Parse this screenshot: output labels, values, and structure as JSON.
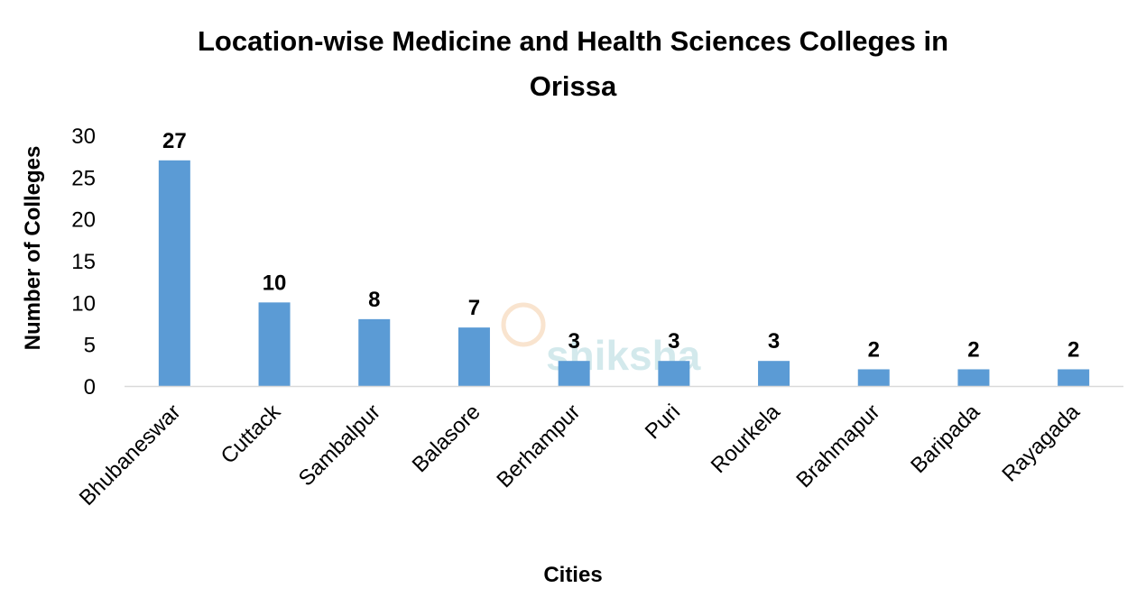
{
  "chart_data": {
    "type": "bar",
    "title_lines": [
      "Location-wise Medicine and Health Sciences  Colleges in",
      "Orissa"
    ],
    "xlabel": "Cities",
    "ylabel": "Number of Colleges",
    "categories": [
      "Bhubaneswar",
      "Cuttack",
      "Sambalpur",
      "Balasore",
      "Berhampur",
      "Puri",
      "Rourkela",
      "Brahmapur",
      "Baripada",
      "Rayagada"
    ],
    "values": [
      27,
      10,
      8,
      7,
      3,
      3,
      3,
      2,
      2,
      2
    ],
    "ylim": [
      0,
      30
    ],
    "yticks": [
      0,
      5,
      10,
      15,
      20,
      25,
      30
    ],
    "grid": false,
    "legend": "none",
    "data_labels": true,
    "bar_color": "#5B9BD5",
    "watermark": "shiksha"
  }
}
